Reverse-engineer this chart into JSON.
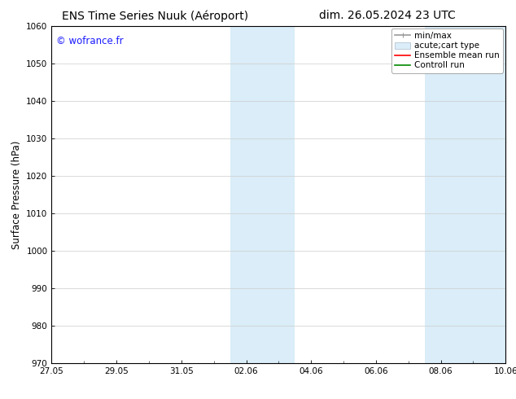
{
  "title_left": "ENS Time Series Nuuk (Aéroport)",
  "title_right": "dim. 26.05.2024 23 UTC",
  "ylabel": "Surface Pressure (hPa)",
  "ylim": [
    970,
    1060
  ],
  "yticks": [
    970,
    980,
    990,
    1000,
    1010,
    1020,
    1030,
    1040,
    1050,
    1060
  ],
  "xtick_labels": [
    "27.05",
    "29.05",
    "31.05",
    "02.06",
    "04.06",
    "06.06",
    "08.06",
    "10.06"
  ],
  "xtick_positions": [
    0,
    2,
    4,
    6,
    8,
    10,
    12,
    14
  ],
  "xlim": [
    0,
    14
  ],
  "watermark": "© wofrance.fr",
  "watermark_color": "#1a1aff",
  "shading_bands": [
    {
      "start": 5.5,
      "end": 7.5
    },
    {
      "start": 11.5,
      "end": 14.0
    }
  ],
  "shading_color": "#daedf8",
  "legend_items": [
    {
      "label": "min/max",
      "color": "#999999",
      "lw": 1.2,
      "style": "minmax"
    },
    {
      "label": "acute;cart type",
      "color": "#ccddee",
      "lw": 6,
      "style": "bar"
    },
    {
      "label": "Ensemble mean run",
      "color": "#ff0000",
      "lw": 1.2,
      "style": "line"
    },
    {
      "label": "Controll run",
      "color": "#008800",
      "lw": 1.2,
      "style": "line"
    }
  ],
  "background_color": "#ffffff",
  "plot_bg_color": "#ffffff",
  "spine_color": "#000000",
  "tick_color": "#000000",
  "title_fontsize": 10,
  "ylabel_fontsize": 8.5,
  "tick_fontsize": 7.5,
  "legend_fontsize": 7.5,
  "watermark_fontsize": 8.5
}
